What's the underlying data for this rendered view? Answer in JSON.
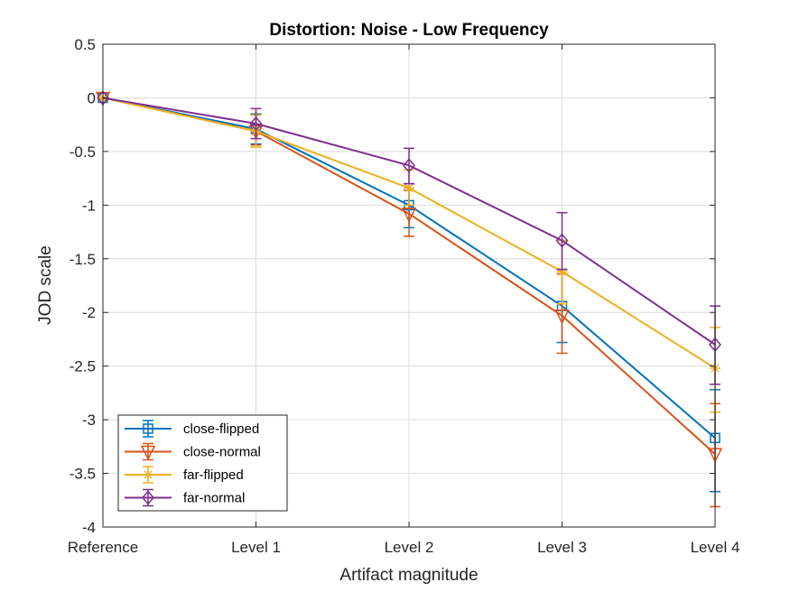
{
  "chart_data": {
    "type": "line",
    "title": "Distortion: Noise - Low Frequency",
    "xlabel": "Artifact magnitude",
    "ylabel": "JOD scale",
    "categories": [
      "Reference",
      "Level 1",
      "Level 2",
      "Level 3",
      "Level 4"
    ],
    "ylim": [
      -4,
      0.5
    ],
    "yticks": [
      0.5,
      0,
      -0.5,
      -1,
      -1.5,
      -2,
      -2.5,
      -3,
      -3.5,
      -4
    ],
    "ytick_labels": [
      "0.5",
      "0",
      "-0.5",
      "-1",
      "-1.5",
      "-2",
      "-2.5",
      "-3",
      "-3.5",
      "-4"
    ],
    "grid": true,
    "legend_position": "bottom-left",
    "error_bars": true,
    "series": [
      {
        "name": "close-flipped",
        "color": "#0072BD",
        "marker": "square",
        "values": [
          0,
          -0.29,
          -1.0,
          -1.94,
          -3.17
        ],
        "err_low": [
          0,
          -0.43,
          -1.21,
          -2.28,
          -3.67
        ],
        "err_high": [
          0,
          -0.15,
          -0.8,
          -1.6,
          -2.72
        ]
      },
      {
        "name": "close-normal",
        "color": "#D95319",
        "marker": "triangle-down",
        "values": [
          0,
          -0.31,
          -1.08,
          -2.03,
          -3.32
        ],
        "err_low": [
          0,
          -0.44,
          -1.29,
          -2.38,
          -3.81
        ],
        "err_high": [
          0,
          -0.16,
          -0.86,
          -1.64,
          -2.85
        ]
      },
      {
        "name": "far-flipped",
        "color": "#EDB120",
        "marker": "asterisk",
        "values": [
          0,
          -0.31,
          -0.84,
          -1.62,
          -2.52
        ],
        "err_low": [
          0,
          -0.46,
          -1.0,
          -1.92,
          -2.93
        ],
        "err_high": [
          0,
          -0.16,
          -0.67,
          -1.33,
          -2.14
        ]
      },
      {
        "name": "far-normal",
        "color": "#7E2F8E",
        "marker": "diamond",
        "values": [
          0,
          -0.24,
          -0.63,
          -1.33,
          -2.3
        ],
        "err_low": [
          0,
          -0.38,
          -0.8,
          -1.6,
          -2.67
        ],
        "err_high": [
          0,
          -0.1,
          -0.47,
          -1.07,
          -1.94
        ]
      }
    ]
  }
}
